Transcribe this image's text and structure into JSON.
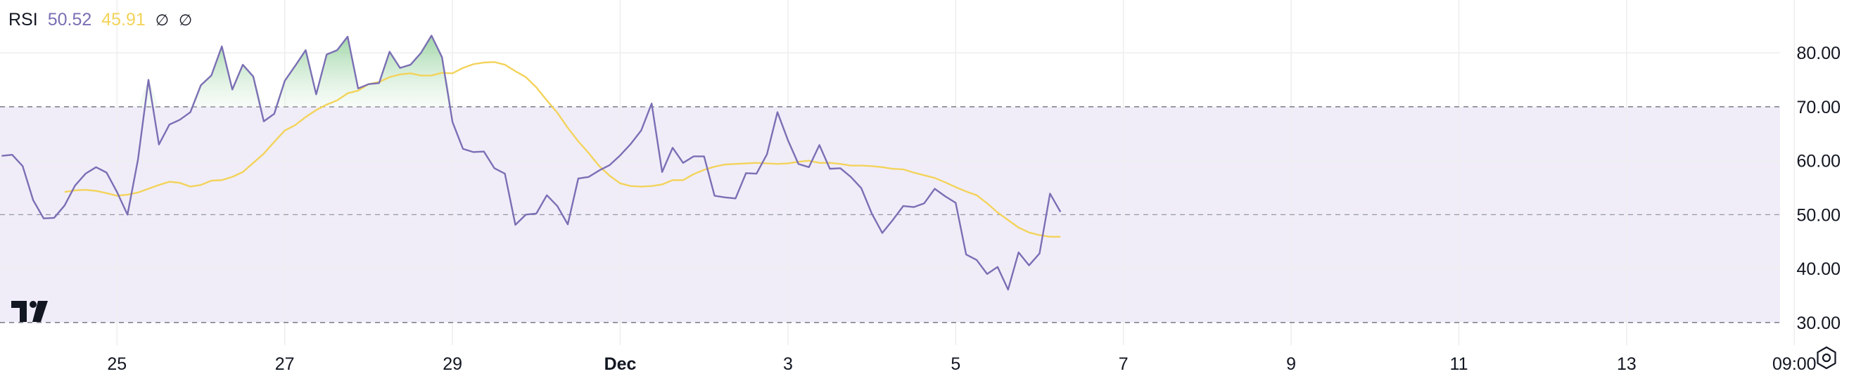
{
  "legend": {
    "indicator": "RSI",
    "rsi_value": "50.52",
    "ma_value": "45.91",
    "hidden_1": "∅",
    "hidden_2": "∅"
  },
  "colors": {
    "rsi_line": "#7b6fb4",
    "ma_line": "#f3d35b",
    "band_fill": "#f0edf9",
    "overbought_fill": "#c8e6c9",
    "grid": "#eeeeee",
    "axis_text": "#131722"
  },
  "icons": {
    "logo": "tradingview-logo-icon",
    "settings": "settings-gear-icon"
  },
  "chart_data": {
    "type": "line",
    "title": "RSI",
    "x_tick_labels": [
      "25",
      "27",
      "29",
      "Dec",
      "3",
      "5",
      "7",
      "9",
      "11",
      "13",
      "09:00"
    ],
    "x_tick_index": [
      12,
      28,
      44,
      60,
      76,
      92,
      108,
      124,
      140,
      156,
      172
    ],
    "x_range": [
      1,
      177
    ],
    "y_ticks": [
      "30.00",
      "40.00",
      "50.00",
      "60.00",
      "70.00",
      "80.00"
    ],
    "y_tick_values": [
      30,
      40,
      50,
      60,
      70,
      80
    ],
    "ylim": [
      25.8,
      89.8
    ],
    "bands": {
      "upper": 70,
      "middle": 50,
      "lower": 30
    },
    "grid": true,
    "series": [
      {
        "name": "RSI",
        "values": [
          60.9,
          61.1,
          59.0,
          52.7,
          49.3,
          49.4,
          51.7,
          55.4,
          57.6,
          58.8,
          57.8,
          54.2,
          50.0,
          60.2,
          75.0,
          63.0,
          66.7,
          67.6,
          69.0,
          74.0,
          75.8,
          81.2,
          73.2,
          77.8,
          75.6,
          67.3,
          68.7,
          74.8,
          77.6,
          80.5,
          72.3,
          79.7,
          80.5,
          83.0,
          73.4,
          74.2,
          74.4,
          80.2,
          77.2,
          77.8,
          80.0,
          83.2,
          79.2,
          67.2,
          62.2,
          61.6,
          61.7,
          58.6,
          57.6,
          48.1,
          50.0,
          50.2,
          53.6,
          51.6,
          48.2,
          56.7,
          57.0,
          58.2,
          59.2,
          61.0,
          63.1,
          65.6,
          70.6,
          57.9,
          62.4,
          59.6,
          60.8,
          60.8,
          53.5,
          53.2,
          53.0,
          57.7,
          57.6,
          61.2,
          69.0,
          63.8,
          59.4,
          58.8,
          62.9,
          58.5,
          58.6,
          57.0,
          54.9,
          50.2,
          46.6,
          49.0,
          51.6,
          51.4,
          52.1,
          54.8,
          53.4,
          52.2,
          42.6,
          41.6,
          39.0,
          40.3,
          36.1,
          43.0,
          40.6,
          42.8,
          53.9,
          50.5
        ],
        "x_start": 1
      },
      {
        "name": "RSI-based MA",
        "values": [
          54.2,
          54.5,
          54.6,
          54.4,
          54.0,
          53.5,
          53.7,
          54.1,
          54.8,
          55.5,
          56.1,
          55.9,
          55.2,
          55.5,
          56.3,
          56.4,
          57.0,
          57.9,
          59.6,
          61.3,
          63.5,
          65.6,
          66.6,
          68.1,
          69.4,
          70.4,
          71.2,
          72.5,
          73.0,
          74.2,
          74.6,
          75.5,
          76.0,
          76.2,
          75.8,
          75.8,
          76.3,
          76.2,
          77.2,
          77.9,
          78.2,
          78.3,
          77.8,
          76.6,
          75.5,
          73.6,
          71.2,
          68.9,
          66.1,
          63.6,
          61.4,
          59.0,
          57.2,
          55.8,
          55.3,
          55.2,
          55.3,
          55.6,
          56.4,
          56.4,
          57.5,
          58.3,
          58.9,
          59.3,
          59.4,
          59.5,
          59.6,
          59.5,
          59.4,
          59.5,
          59.8,
          60.0,
          59.6,
          59.6,
          59.4,
          59.1,
          59.1,
          59.0,
          58.8,
          58.5,
          58.4,
          57.8,
          57.3,
          56.8,
          56.0,
          55.1,
          54.3,
          53.6,
          52.1,
          50.4,
          49.0,
          47.6,
          46.7,
          46.2,
          45.9,
          45.9
        ],
        "x_start": 7
      }
    ]
  }
}
